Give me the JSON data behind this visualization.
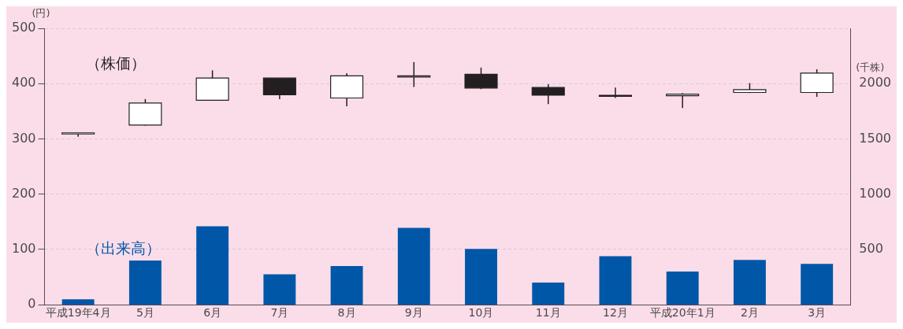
{
  "chart_data": {
    "type": "candlestick",
    "ylabel": "(円)",
    "y2label": "(千株)",
    "categories": [
      "平成19年4月",
      "5月",
      "6月",
      "7月",
      "8月",
      "9月",
      "10月",
      "11月",
      "12月",
      "平成20年1月",
      "2月",
      "3月"
    ],
    "series": [
      {
        "name": "（株価）",
        "colors": [
          "#ffffff",
          "#ffffff",
          "#ffffff",
          "#231f20",
          "#ffffff",
          "#ffffff",
          "#231f20",
          "#231f20",
          "#231f20",
          "#ffffff",
          "#ffffff",
          "#ffffff"
        ],
        "ohlc": [
          [
            310,
            311,
            304,
            311
          ],
          [
            325,
            372,
            324,
            365
          ],
          [
            370,
            424,
            369,
            410
          ],
          [
            410,
            410,
            372,
            380
          ],
          [
            374,
            419,
            359,
            414
          ],
          [
            412,
            439,
            394,
            414
          ],
          [
            417,
            429,
            390,
            392
          ],
          [
            393,
            399,
            363,
            379
          ],
          [
            379,
            393,
            374,
            378
          ],
          [
            378,
            383,
            356,
            381
          ],
          [
            384,
            401,
            383,
            389
          ],
          [
            384,
            426,
            376,
            419
          ]
        ]
      },
      {
        "name": "（出来高）",
        "type": "bar",
        "axis": "y2",
        "color": "#0057a8",
        "values": [
          50,
          400,
          710,
          275,
          350,
          695,
          505,
          200,
          440,
          300,
          405,
          370
        ]
      }
    ],
    "ylim": [
      0,
      500
    ],
    "yticks": [
      0,
      100,
      200,
      300,
      400,
      500
    ],
    "y2lim": [
      0,
      2500
    ],
    "y2ticks": [
      500,
      1000,
      1500,
      2000
    ],
    "grid": "y",
    "legend": false
  }
}
